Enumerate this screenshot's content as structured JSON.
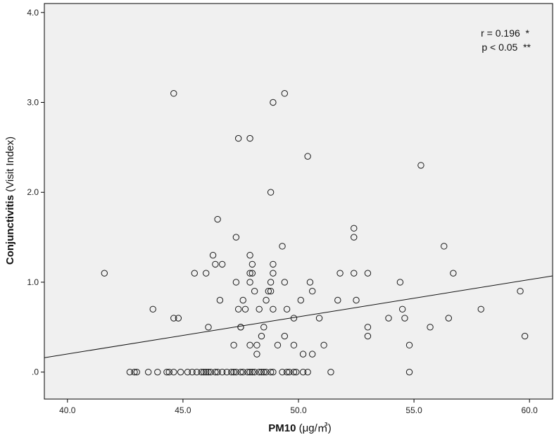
{
  "chart_data": {
    "type": "scatter",
    "xlabel": "PM10",
    "xlabel_unit": "(μg/㎥)",
    "ylabel": "Conjunctivitis",
    "ylabel_unit": "(Visit Index)",
    "xlim": [
      39,
      61
    ],
    "ylim": [
      -0.3,
      4.1
    ],
    "xticks": [
      40,
      45,
      50,
      55,
      60
    ],
    "xtick_labels": [
      "40.0",
      "45.0",
      "50.0",
      "55.0",
      "60.0"
    ],
    "yticks": [
      0,
      1,
      2,
      3,
      4
    ],
    "ytick_labels": [
      ".0",
      "1.0",
      "2.0",
      "3.0",
      "4.0"
    ],
    "plot_background": "#f0f0f0",
    "point_color": "#1a1a1a",
    "annotations": [
      {
        "text": "r = 0.196  *"
      },
      {
        "text": "p < 0.05  **"
      }
    ],
    "fit_line": {
      "x": [
        39,
        61
      ],
      "y": [
        0.16,
        1.07
      ]
    },
    "points": [
      [
        41.6,
        1.1
      ],
      [
        43.7,
        0.7
      ],
      [
        44.6,
        3.1
      ],
      [
        44.6,
        0.6
      ],
      [
        44.8,
        0.6
      ],
      [
        45.5,
        1.1
      ],
      [
        46.0,
        1.1
      ],
      [
        46.1,
        0.5
      ],
      [
        46.3,
        1.3
      ],
      [
        46.4,
        1.2
      ],
      [
        46.5,
        1.7
      ],
      [
        46.6,
        0.8
      ],
      [
        46.7,
        1.2
      ],
      [
        47.2,
        0.3
      ],
      [
        47.3,
        1.5
      ],
      [
        47.3,
        1.0
      ],
      [
        47.4,
        2.6
      ],
      [
        47.4,
        0.7
      ],
      [
        47.5,
        0.5
      ],
      [
        47.5,
        0.5
      ],
      [
        47.6,
        0.8
      ],
      [
        47.7,
        0.7
      ],
      [
        47.9,
        2.6
      ],
      [
        47.9,
        1.3
      ],
      [
        47.9,
        1.1
      ],
      [
        47.9,
        1.0
      ],
      [
        47.9,
        0.3
      ],
      [
        48.0,
        1.2
      ],
      [
        48.0,
        1.1
      ],
      [
        48.1,
        0.9
      ],
      [
        48.2,
        0.3
      ],
      [
        48.2,
        0.2
      ],
      [
        48.3,
        0.7
      ],
      [
        48.4,
        0.4
      ],
      [
        48.5,
        0.5
      ],
      [
        48.6,
        0.8
      ],
      [
        48.7,
        0.9
      ],
      [
        48.8,
        2.0
      ],
      [
        48.8,
        1.0
      ],
      [
        48.8,
        0.9
      ],
      [
        48.9,
        3.0
      ],
      [
        48.9,
        1.2
      ],
      [
        48.9,
        1.1
      ],
      [
        48.9,
        0.7
      ],
      [
        49.1,
        0.3
      ],
      [
        49.3,
        1.4
      ],
      [
        49.4,
        3.1
      ],
      [
        49.4,
        1.0
      ],
      [
        49.4,
        0.4
      ],
      [
        49.5,
        0.7
      ],
      [
        49.8,
        0.6
      ],
      [
        49.8,
        0.3
      ],
      [
        50.1,
        0.8
      ],
      [
        50.2,
        0.2
      ],
      [
        50.4,
        2.4
      ],
      [
        50.5,
        1.0
      ],
      [
        50.6,
        0.9
      ],
      [
        50.6,
        0.2
      ],
      [
        50.9,
        0.6
      ],
      [
        51.1,
        0.3
      ],
      [
        51.7,
        0.8
      ],
      [
        51.8,
        1.1
      ],
      [
        52.4,
        1.6
      ],
      [
        52.4,
        1.5
      ],
      [
        52.4,
        1.1
      ],
      [
        52.5,
        0.8
      ],
      [
        53.0,
        1.1
      ],
      [
        53.0,
        0.5
      ],
      [
        53.0,
        0.4
      ],
      [
        53.9,
        0.6
      ],
      [
        54.4,
        1.0
      ],
      [
        54.5,
        0.7
      ],
      [
        54.6,
        0.6
      ],
      [
        54.8,
        0.3
      ],
      [
        54.8,
        0.0
      ],
      [
        55.3,
        2.3
      ],
      [
        55.7,
        0.5
      ],
      [
        56.3,
        1.4
      ],
      [
        56.5,
        0.6
      ],
      [
        56.7,
        1.1
      ],
      [
        57.9,
        0.7
      ],
      [
        59.6,
        0.9
      ],
      [
        59.8,
        0.4
      ],
      [
        42.7,
        0.0
      ],
      [
        42.9,
        0.0
      ],
      [
        43.0,
        0.0
      ],
      [
        43.5,
        0.0
      ],
      [
        43.9,
        0.0
      ],
      [
        44.3,
        0.0
      ],
      [
        44.4,
        0.0
      ],
      [
        44.6,
        0.0
      ],
      [
        44.9,
        0.0
      ],
      [
        45.2,
        0.0
      ],
      [
        45.4,
        0.0
      ],
      [
        45.6,
        0.0
      ],
      [
        45.8,
        0.0
      ],
      [
        45.9,
        0.0
      ],
      [
        46.0,
        0.0
      ],
      [
        46.1,
        0.0
      ],
      [
        46.2,
        0.0
      ],
      [
        46.4,
        0.0
      ],
      [
        46.5,
        0.0
      ],
      [
        46.7,
        0.0
      ],
      [
        46.9,
        0.0
      ],
      [
        47.1,
        0.0
      ],
      [
        47.2,
        0.0
      ],
      [
        47.3,
        0.0
      ],
      [
        47.5,
        0.0
      ],
      [
        47.6,
        0.0
      ],
      [
        47.8,
        0.0
      ],
      [
        47.9,
        0.0
      ],
      [
        48.0,
        0.0
      ],
      [
        48.1,
        0.0
      ],
      [
        48.3,
        0.0
      ],
      [
        48.4,
        0.0
      ],
      [
        48.5,
        0.0
      ],
      [
        48.6,
        0.0
      ],
      [
        48.8,
        0.0
      ],
      [
        48.9,
        0.0
      ],
      [
        49.3,
        0.0
      ],
      [
        49.5,
        0.0
      ],
      [
        49.6,
        0.0
      ],
      [
        49.8,
        0.0
      ],
      [
        49.9,
        0.0
      ],
      [
        50.2,
        0.0
      ],
      [
        50.4,
        0.0
      ],
      [
        51.4,
        0.0
      ]
    ]
  }
}
